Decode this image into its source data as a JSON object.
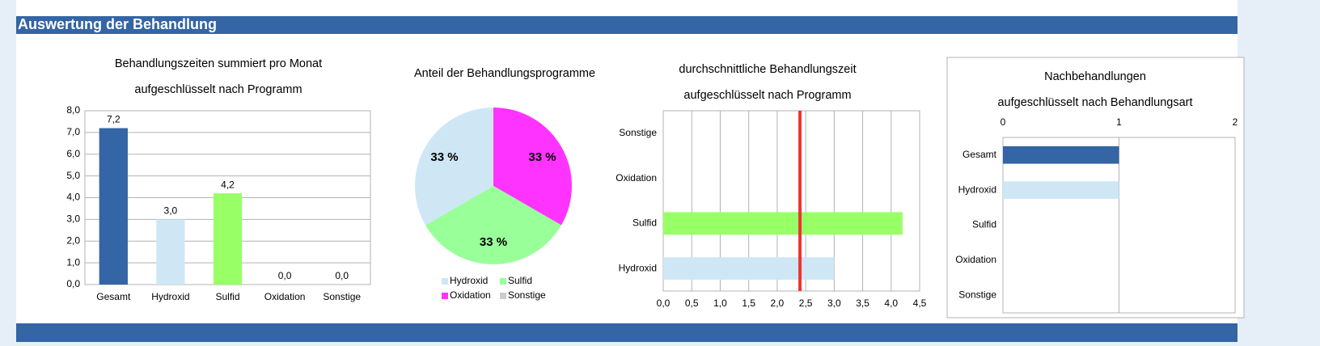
{
  "header": {
    "title": "Auswertung der Behandlung"
  },
  "chart_data": [
    {
      "type": "bar",
      "orientation": "vertical",
      "title": [
        "Behandlungszeiten summiert pro Monat",
        "aufgeschlüsselt nach Programm"
      ],
      "categories": [
        "Gesamt",
        "Hydroxid",
        "Sulfid",
        "Oxidation",
        "Sonstige"
      ],
      "values": [
        7.2,
        3.0,
        4.2,
        0,
        0
      ],
      "value_labels": [
        "7,2",
        "3,0",
        "4,2",
        "0,0",
        "0,0"
      ],
      "colors": [
        "#3465a4",
        "#cfe7f5",
        "#99ff66",
        "#ff33ff",
        "#cccccc"
      ],
      "ylim": [
        0,
        8
      ],
      "yticks": [
        {
          "value": 0,
          "label": "0,0"
        },
        {
          "value": 1,
          "label": "1,0"
        },
        {
          "value": 2,
          "label": "2,0"
        },
        {
          "value": 3,
          "label": "3,0"
        },
        {
          "value": 4,
          "label": "4,0"
        },
        {
          "value": 5,
          "label": "5,0"
        },
        {
          "value": 6,
          "label": "6,0"
        },
        {
          "value": 7,
          "label": "7,0"
        },
        {
          "value": 8,
          "label": "8,0"
        }
      ],
      "grid": true
    },
    {
      "type": "pie",
      "title": [
        "Anteil der Behandlungsprogramme"
      ],
      "categories": [
        "Hydroxid",
        "Sulfid",
        "Oxidation",
        "Sonstige"
      ],
      "values": [
        33,
        33,
        33,
        0
      ],
      "value_labels": [
        "33 %",
        "33 %",
        "33 %",
        null
      ],
      "colors": [
        "#cfe7f5",
        "#99ff99",
        "#ff33ff",
        "#cccccc"
      ],
      "legend": "bottom"
    },
    {
      "type": "bar",
      "orientation": "horizontal",
      "title": [
        "durchschnittliche Behandlungszeit",
        "aufgeschlüsselt nach Programm"
      ],
      "categories": [
        "Hydroxid",
        "Sulfid",
        "Oxidation",
        "Sonstige"
      ],
      "values": [
        3.0,
        4.2,
        0,
        0
      ],
      "colors": [
        "#cfe7f5",
        "#99ff66",
        "#ff33ff",
        "#cccccc"
      ],
      "reference_line": {
        "value": 2.4,
        "color": "#ee3333"
      },
      "xlim": [
        0,
        4.5
      ],
      "xticks": [
        {
          "value": 0,
          "label": "0,0"
        },
        {
          "value": 0.5,
          "label": "0,5"
        },
        {
          "value": 1,
          "label": "1,0"
        },
        {
          "value": 1.5,
          "label": "1,5"
        },
        {
          "value": 2,
          "label": "2,0"
        },
        {
          "value": 2.5,
          "label": "2,5"
        },
        {
          "value": 3,
          "label": "3,0"
        },
        {
          "value": 3.5,
          "label": "3,5"
        },
        {
          "value": 4,
          "label": "4,0"
        },
        {
          "value": 4.5,
          "label": "4,5"
        }
      ],
      "grid": true
    },
    {
      "type": "bar",
      "orientation": "horizontal",
      "title": [
        "Nachbehandlungen",
        "aufgeschlüsselt nach Behandlungsart"
      ],
      "categories": [
        "Gesamt",
        "Hydroxid",
        "Sulfid",
        "Oxidation",
        "Sonstige"
      ],
      "values": [
        1,
        1,
        0,
        0,
        0
      ],
      "colors": [
        "#3465a4",
        "#cfe7f5",
        "#99ff66",
        "#ff33ff",
        "#cccccc"
      ],
      "xlim": [
        0,
        2
      ],
      "xticks": [
        0,
        1,
        2
      ],
      "grid": true
    }
  ]
}
